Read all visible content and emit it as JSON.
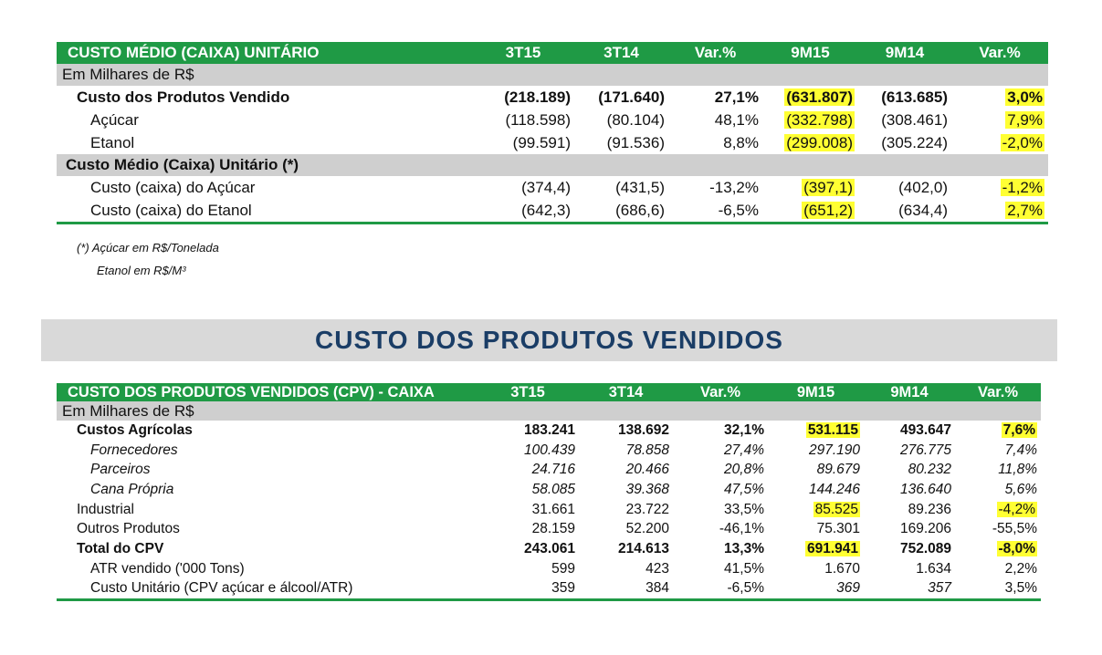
{
  "table1": {
    "header": [
      "CUSTO MÉDIO (CAIXA) UNITÁRIO",
      "3T15",
      "3T14",
      "Var.%",
      "9M15",
      "9M14",
      "Var.%"
    ],
    "unit_label": "Em Milhares de R$",
    "rows": [
      {
        "label": "Custo dos Produtos Vendido",
        "v": [
          "(218.189)",
          "(171.640)",
          "27,1%",
          "(631.807)",
          "(613.685)",
          "3,0%"
        ]
      },
      {
        "label": "Açúcar",
        "v": [
          "(118.598)",
          "(80.104)",
          "48,1%",
          "(332.798)",
          "(308.461)",
          "7,9%"
        ]
      },
      {
        "label": "Etanol",
        "v": [
          "(99.591)",
          "(91.536)",
          "8,8%",
          "(299.008)",
          "(305.224)",
          "-2,0%"
        ]
      }
    ],
    "section2_label": "Custo Médio (Caixa) Unitário (*)",
    "rows2": [
      {
        "label": "Custo (caixa) do Açúcar",
        "v": [
          "(374,4)",
          "(431,5)",
          "-13,2%",
          "(397,1)",
          "(402,0)",
          "-1,2%"
        ]
      },
      {
        "label": "Custo (caixa) do Etanol",
        "v": [
          "(642,3)",
          "(686,6)",
          "-6,5%",
          "(651,2)",
          "(634,4)",
          "2,7%"
        ]
      }
    ],
    "note1": "(*) Açúcar em R$/Tonelada",
    "note2": "Etanol em R$/M³"
  },
  "banner": "CUSTO DOS PRODUTOS VENDIDOS",
  "table2": {
    "header": [
      "CUSTO DOS PRODUTOS VENDIDOS (CPV) - CAIXA",
      "3T15",
      "3T14",
      "Var.%",
      "9M15",
      "9M14",
      "Var.%"
    ],
    "unit_label": "Em Milhares de R$",
    "rows": [
      {
        "label": "Custos Agrícolas",
        "v": [
          "183.241",
          "138.692",
          "32,1%",
          "531.115",
          "493.647",
          "7,6%"
        ]
      },
      {
        "label": "Fornecedores",
        "v": [
          "100.439",
          "78.858",
          "27,4%",
          "297.190",
          "276.775",
          "7,4%"
        ]
      },
      {
        "label": "Parceiros",
        "v": [
          "24.716",
          "20.466",
          "20,8%",
          "89.679",
          "80.232",
          "11,8%"
        ]
      },
      {
        "label": "Cana Própria",
        "v": [
          "58.085",
          "39.368",
          "47,5%",
          "144.246",
          "136.640",
          "5,6%"
        ]
      },
      {
        "label": "Industrial",
        "v": [
          "31.661",
          "23.722",
          "33,5%",
          "85.525",
          "89.236",
          "-4,2%"
        ]
      },
      {
        "label": "Outros Produtos",
        "v": [
          "28.159",
          "52.200",
          "-46,1%",
          "75.301",
          "169.206",
          "-55,5%"
        ]
      },
      {
        "label": "Total do CPV",
        "v": [
          "243.061",
          "214.613",
          "13,3%",
          "691.941",
          "752.089",
          "-8,0%"
        ]
      },
      {
        "label": "ATR vendido ('000 Tons)",
        "v": [
          "599",
          "423",
          "41,5%",
          "1.670",
          "1.634",
          "2,2%"
        ]
      },
      {
        "label": "Custo Unitário (CPV açúcar e álcool/ATR)",
        "v": [
          "359",
          "384",
          "-6,5%",
          "369",
          "357",
          "3,5%"
        ]
      }
    ]
  },
  "colors": {
    "header_green": "#1f9a45",
    "highlight": "#ffff33",
    "sub_gray": "#cfcfcf",
    "banner_text": "#1a3d66"
  }
}
